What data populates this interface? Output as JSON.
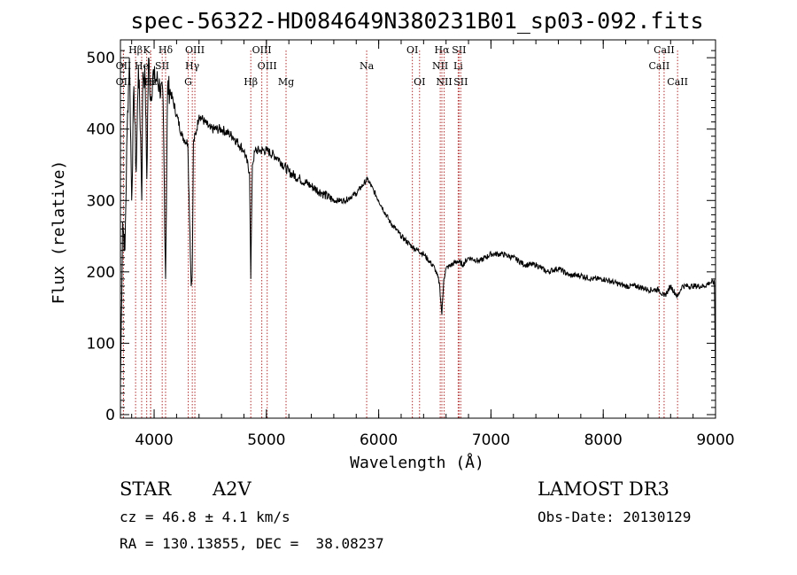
{
  "chart_data": {
    "type": "line",
    "title": "spec-56322-HD084649N380231B01_sp03-092.fits",
    "xlabel": "Wavelength (Å)",
    "ylabel": "Flux (relative)",
    "xlim": [
      3700,
      9000
    ],
    "ylim": [
      -5,
      525
    ],
    "xticks": [
      4000,
      5000,
      6000,
      7000,
      8000,
      9000
    ],
    "yticks": [
      0,
      100,
      200,
      300,
      400,
      500
    ],
    "series": [
      {
        "name": "spectrum",
        "x": [
          3700,
          3720,
          3740,
          3760,
          3780,
          3800,
          3820,
          3840,
          3860,
          3880,
          3890,
          3900,
          3920,
          3935,
          3950,
          3970,
          3990,
          4000,
          4020,
          4050,
          4080,
          4102,
          4120,
          4150,
          4200,
          4250,
          4300,
          4330,
          4340,
          4350,
          4380,
          4400,
          4450,
          4500,
          4600,
          4700,
          4800,
          4850,
          4861,
          4875,
          4900,
          4950,
          5000,
          5100,
          5200,
          5300,
          5400,
          5500,
          5600,
          5700,
          5800,
          5900,
          6000,
          6100,
          6200,
          6300,
          6400,
          6500,
          6540,
          6563,
          6580,
          6600,
          6650,
          6700,
          6750,
          6800,
          6900,
          7000,
          7100,
          7200,
          7300,
          7400,
          7500,
          7600,
          7700,
          7800,
          7900,
          8000,
          8100,
          8200,
          8300,
          8400,
          8498,
          8542,
          8600,
          8662,
          8700,
          8800,
          8900,
          8950,
          8990,
          9000
        ],
        "y": [
          40,
          270,
          230,
          400,
          500,
          300,
          460,
          340,
          490,
          390,
          300,
          480,
          470,
          330,
          500,
          440,
          480,
          470,
          470,
          460,
          440,
          190,
          460,
          450,
          420,
          390,
          380,
          180,
          200,
          380,
          400,
          420,
          410,
          400,
          400,
          390,
          370,
          340,
          190,
          350,
          370,
          370,
          370,
          360,
          340,
          330,
          320,
          310,
          300,
          300,
          310,
          330,
          300,
          270,
          250,
          235,
          225,
          205,
          185,
          140,
          190,
          205,
          210,
          215,
          210,
          220,
          215,
          225,
          225,
          220,
          210,
          210,
          200,
          205,
          195,
          195,
          190,
          190,
          185,
          180,
          180,
          175,
          175,
          165,
          180,
          165,
          180,
          180,
          180,
          185,
          185,
          40
        ]
      }
    ],
    "spectral_lines": [
      {
        "label": "Hβ",
        "x": 3835,
        "row": 1
      },
      {
        "label": "K",
        "x": 3934,
        "row": 1
      },
      {
        "label": "Hδ",
        "x": 4102,
        "row": 1
      },
      {
        "label": "OIII",
        "x": 4363,
        "row": 1
      },
      {
        "label": "OIII",
        "x": 4959,
        "row": 1
      },
      {
        "label": "OI",
        "x": 6300,
        "row": 1
      },
      {
        "label": "Hα",
        "x": 6563,
        "row": 1
      },
      {
        "label": "SII",
        "x": 6716,
        "row": 1
      },
      {
        "label": "CaII",
        "x": 8542,
        "row": 1
      },
      {
        "label": "OII",
        "x": 3727,
        "row": 2
      },
      {
        "label": "He",
        "x": 3889,
        "row": 2
      },
      {
        "label": "SII",
        "x": 4072,
        "row": 2
      },
      {
        "label": "Hγ",
        "x": 4340,
        "row": 2
      },
      {
        "label": "OIII",
        "x": 5007,
        "row": 2
      },
      {
        "label": "NII",
        "x": 6548,
        "row": 2
      },
      {
        "label": "Li",
        "x": 6708,
        "row": 2
      },
      {
        "label": "CaII",
        "x": 8498,
        "row": 2
      },
      {
        "label": "OII",
        "x": 3727,
        "row": 3
      },
      {
        "label": "Hε",
        "x": 3970,
        "row": 3
      },
      {
        "label": "H",
        "x": 3968,
        "row": 3
      },
      {
        "label": "G",
        "x": 4304,
        "row": 3
      },
      {
        "label": "Hβ",
        "x": 4861,
        "row": 3
      },
      {
        "label": "Mg",
        "x": 5175,
        "row": 3
      },
      {
        "label": "Na",
        "x": 5893,
        "row": 2
      },
      {
        "label": "OI",
        "x": 6364,
        "row": 3
      },
      {
        "label": "NII",
        "x": 6583,
        "row": 3
      },
      {
        "label": "SII",
        "x": 6731,
        "row": 3
      },
      {
        "label": "CaII",
        "x": 8662,
        "row": 3
      }
    ],
    "line_color": "#b03030"
  },
  "info": {
    "class": "STAR",
    "subclass": "A2V",
    "survey": "LAMOST DR3",
    "cz": "cz = 46.8 ± 4.1 km/s",
    "obs_date": "Obs-Date: 20130129",
    "coords": "RA = 130.13855, DEC =  38.08237"
  }
}
